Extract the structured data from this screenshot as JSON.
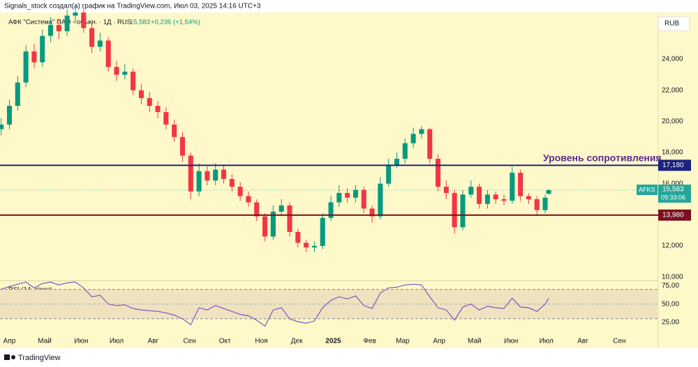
{
  "header": "Signals_stock создал(а) график на TradingView.com, Июл 03, 2025 14:16 UTC+3",
  "footer": "TradingView",
  "chart_data": {
    "type": "candlestick",
    "symbol_line": "АФК \"Система\" ПАО - обыкн. · 1Д · RUS",
    "last": {
      "value": 15583,
      "label": "15,583"
    },
    "change": "+0,236 (+1,54%)",
    "currency": "RUB",
    "ticker": "AFKS",
    "countdown": "09:33:06",
    "annotation": "Уровень сопротивления",
    "levels": [
      {
        "value": 17180,
        "label": "17,180",
        "color": "#1a237e"
      },
      {
        "value": 13980,
        "label": "13,980",
        "color": "#7b1020"
      }
    ],
    "up_color": "#089981",
    "down_color": "#f23645",
    "x": [
      -7,
      0,
      7,
      14,
      21,
      28,
      35,
      42,
      49,
      56,
      63,
      70,
      77,
      84,
      91,
      98,
      105,
      112,
      119,
      126,
      133,
      140,
      147,
      154,
      161,
      168,
      175,
      182,
      189,
      196,
      203,
      210,
      217,
      224,
      231,
      238,
      245,
      252,
      259,
      266,
      273,
      280,
      287,
      294,
      301,
      308,
      315,
      322,
      329,
      336,
      343,
      350,
      357,
      364,
      371,
      378,
      385,
      392,
      399,
      406,
      413,
      420,
      427,
      434,
      441,
      448,
      455,
      458
    ],
    "open": [
      19500,
      19800,
      21000,
      22500,
      24500,
      23800,
      25500,
      26200,
      25800,
      26800,
      27000,
      26000,
      24800,
      25200,
      23500,
      23000,
      23200,
      22000,
      21500,
      21000,
      20600,
      19800,
      19000,
      17800,
      15500,
      16800,
      16200,
      16900,
      16300,
      15800,
      15200,
      14800,
      13900,
      12600,
      14200,
      14600,
      12900,
      12200,
      11900,
      12000,
      13800,
      14800,
      15400,
      15100,
      15600,
      14400,
      13900,
      16000,
      17200,
      17600,
      18600,
      19200,
      19500,
      17600,
      15800,
      15400,
      13200,
      15300,
      15800,
      14700,
      15300,
      15000,
      14900,
      16700,
      15200,
      15000,
      14300,
      15347
    ],
    "high": [
      20200,
      21400,
      22900,
      24900,
      25000,
      25900,
      26700,
      26600,
      27200,
      27400,
      27300,
      26300,
      25700,
      25400,
      23900,
      23700,
      23400,
      22400,
      21900,
      21300,
      20900,
      20100,
      19300,
      18000,
      17300,
      17100,
      17300,
      17200,
      16600,
      16100,
      15500,
      15000,
      14100,
      14600,
      15000,
      14800,
      13100,
      12400,
      12300,
      14100,
      15200,
      15900,
      15700,
      15900,
      15800,
      14600,
      16400,
      17600,
      18000,
      18900,
      19600,
      19700,
      19600,
      17900,
      16200,
      15600,
      15600,
      16200,
      16000,
      15600,
      15500,
      15300,
      17100,
      16900,
      15400,
      15200,
      15300,
      15650
    ],
    "low": [
      19100,
      19500,
      20700,
      22200,
      23400,
      23500,
      25100,
      25300,
      25500,
      26300,
      25700,
      24400,
      24500,
      23200,
      22600,
      22700,
      21700,
      21100,
      20600,
      20200,
      19500,
      18700,
      17400,
      15000,
      15200,
      15900,
      15900,
      16000,
      15500,
      14900,
      14500,
      13600,
      12300,
      12400,
      13900,
      12600,
      11900,
      11600,
      11600,
      11800,
      13600,
      14500,
      14800,
      14800,
      14100,
      13500,
      13700,
      15800,
      17000,
      17300,
      18300,
      18900,
      17300,
      15500,
      15000,
      12800,
      13000,
      15100,
      14400,
      14400,
      14700,
      14600,
      14700,
      14900,
      14700,
      14000,
      14100,
      15300
    ],
    "close": [
      19800,
      21000,
      22500,
      24500,
      23800,
      25500,
      26200,
      25800,
      26800,
      27000,
      26000,
      24800,
      25200,
      23500,
      23000,
      23200,
      22000,
      21500,
      21000,
      20600,
      19800,
      19000,
      17800,
      15500,
      16800,
      16200,
      16900,
      16300,
      15800,
      15200,
      14800,
      13900,
      12600,
      14200,
      14600,
      12900,
      12200,
      11900,
      12000,
      13800,
      14800,
      15400,
      15100,
      15600,
      14400,
      13900,
      16000,
      17200,
      17600,
      18600,
      19200,
      19500,
      17600,
      15800,
      15400,
      13200,
      15300,
      15800,
      14700,
      15300,
      15000,
      14900,
      16700,
      15200,
      15000,
      14300,
      15100,
      15583
    ],
    "xlim": [
      -8,
      551
    ],
    "xticks": [
      {
        "value": 0,
        "label": "Апр"
      },
      {
        "value": 30,
        "label": "Май"
      },
      {
        "value": 61,
        "label": "Июн"
      },
      {
        "value": 91,
        "label": "Июл"
      },
      {
        "value": 122,
        "label": "Авг"
      },
      {
        "value": 153,
        "label": "Сен"
      },
      {
        "value": 183,
        "label": "Окт"
      },
      {
        "value": 214,
        "label": "Ноя"
      },
      {
        "value": 244,
        "label": "Дек"
      },
      {
        "value": 275,
        "label": "2025"
      },
      {
        "value": 306,
        "label": "Фев"
      },
      {
        "value": 334,
        "label": "Мар"
      },
      {
        "value": 365,
        "label": "Апр"
      },
      {
        "value": 395,
        "label": "Май"
      },
      {
        "value": 426,
        "label": "Июн"
      },
      {
        "value": 456,
        "label": "Июл"
      },
      {
        "value": 487,
        "label": "Авг"
      },
      {
        "value": 518,
        "label": "Сен"
      }
    ],
    "ylim": [
      9900,
      27000
    ],
    "yticks": [
      {
        "value": 10000,
        "label": "10,000"
      },
      {
        "value": 12000,
        "label": "12,000"
      },
      {
        "value": 14000,
        "label": "14,000"
      },
      {
        "value": 16000,
        "label": "16,000"
      },
      {
        "value": 18000,
        "label": "18,000"
      },
      {
        "value": 20000,
        "label": "20,000"
      },
      {
        "value": 22000,
        "label": "22,000"
      },
      {
        "value": 24000,
        "label": "24,000"
      }
    ],
    "rsi": {
      "name": "RSI (14, close)",
      "color": "#7e57c2",
      "values": [
        70,
        74,
        77,
        80,
        72,
        78,
        80,
        76,
        79,
        80,
        72,
        60,
        62,
        50,
        48,
        49,
        44,
        42,
        41,
        40,
        38,
        35,
        30,
        22,
        45,
        42,
        48,
        44,
        40,
        36,
        34,
        28,
        20,
        42,
        45,
        30,
        26,
        24,
        27,
        45,
        55,
        60,
        57,
        61,
        48,
        44,
        65,
        72,
        73,
        76,
        77,
        76,
        60,
        45,
        42,
        28,
        46,
        50,
        42,
        47,
        45,
        44,
        58,
        46,
        45,
        40,
        50,
        58
      ],
      "ylim": [
        7,
        80
      ],
      "yticks": [
        {
          "value": 25,
          "label": "25,00"
        },
        {
          "value": 50,
          "label": "50,00"
        },
        {
          "value": 75,
          "label": "75,00"
        }
      ],
      "bands": [
        30,
        70
      ]
    }
  }
}
